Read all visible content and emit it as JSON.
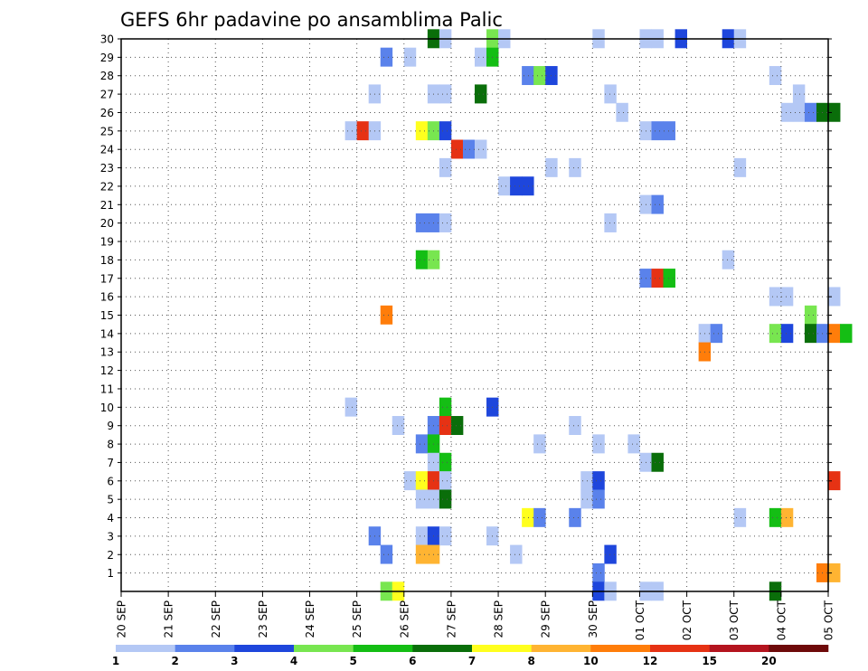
{
  "chart_data": {
    "type": "heatmap",
    "title": "GEFS 6hr padavine po ansamblima Palic",
    "x_tick_labels": [
      "20 SEP",
      "21 SEP",
      "22 SEP",
      "23 SEP",
      "24 SEP",
      "25 SEP",
      "26 SEP",
      "27 SEP",
      "28 SEP",
      "29 SEP",
      "30 SEP",
      "01 OCT",
      "02 OCT",
      "03 OCT",
      "04 OCT",
      "05 OCT"
    ],
    "y_tick_labels": [
      "1",
      "2",
      "3",
      "4",
      "5",
      "6",
      "7",
      "8",
      "9",
      "10",
      "11",
      "12",
      "13",
      "14",
      "15",
      "16",
      "17",
      "18",
      "19",
      "20",
      "21",
      "22",
      "23",
      "24",
      "25",
      "26",
      "27",
      "28",
      "29",
      "30"
    ],
    "y_range": [
      0,
      30
    ],
    "grid": true,
    "legend": {
      "placement": "bottom",
      "labels": [
        "1",
        "2",
        "3",
        "4",
        "5",
        "6",
        "7",
        "8",
        "10",
        "12",
        "15",
        "20"
      ],
      "colors": [
        "#b4c8f5",
        "#5a82eb",
        "#1e46dc",
        "#78e650",
        "#14be14",
        "#0a6e0a",
        "#ffff1e",
        "#ffb432",
        "#ff7d0a",
        "#e63214",
        "#b4141e",
        "#6e0a0a"
      ]
    },
    "cells": [
      {
        "member": 30,
        "date": "26 SEP 12",
        "level": 5
      },
      {
        "member": 30,
        "date": "26 SEP 18",
        "level": 0
      },
      {
        "member": 30,
        "date": "27 SEP 18",
        "level": 3
      },
      {
        "member": 30,
        "date": "28 SEP 00",
        "level": 0
      },
      {
        "member": 30,
        "date": "30 SEP 00",
        "level": 0
      },
      {
        "member": 30,
        "date": "01 OCT 00",
        "level": 0
      },
      {
        "member": 30,
        "date": "01 OCT 06",
        "level": 0
      },
      {
        "member": 30,
        "date": "01 OCT 18",
        "level": 2
      },
      {
        "member": 30,
        "date": "02 OCT 18",
        "level": 2
      },
      {
        "member": 30,
        "date": "03 OCT 00",
        "level": 0
      },
      {
        "member": 29,
        "date": "25 SEP 12",
        "level": 1
      },
      {
        "member": 29,
        "date": "26 SEP 00",
        "level": 0
      },
      {
        "member": 29,
        "date": "27 SEP 12",
        "level": 0
      },
      {
        "member": 29,
        "date": "27 SEP 18",
        "level": 4
      },
      {
        "member": 28,
        "date": "28 SEP 12",
        "level": 1
      },
      {
        "member": 28,
        "date": "28 SEP 18",
        "level": 3
      },
      {
        "member": 28,
        "date": "29 SEP 00",
        "level": 2
      },
      {
        "member": 28,
        "date": "03 OCT 18",
        "level": 0
      },
      {
        "member": 27,
        "date": "25 SEP 06",
        "level": 0
      },
      {
        "member": 27,
        "date": "26 SEP 12",
        "level": 0
      },
      {
        "member": 27,
        "date": "26 SEP 18",
        "level": 0
      },
      {
        "member": 27,
        "date": "27 SEP 12",
        "level": 5
      },
      {
        "member": 27,
        "date": "30 SEP 06",
        "level": 0
      },
      {
        "member": 27,
        "date": "04 OCT 06",
        "level": 0
      },
      {
        "member": 26,
        "date": "30 SEP 12",
        "level": 0
      },
      {
        "member": 26,
        "date": "04 OCT 00",
        "level": 0
      },
      {
        "member": 26,
        "date": "04 OCT 06",
        "level": 0
      },
      {
        "member": 26,
        "date": "04 OCT 12",
        "level": 1
      },
      {
        "member": 26,
        "date": "04 OCT 18",
        "level": 5
      },
      {
        "member": 26,
        "date": "05 OCT 00",
        "level": 5
      },
      {
        "member": 25,
        "date": "24 SEP 18",
        "level": 0
      },
      {
        "member": 25,
        "date": "25 SEP 00",
        "level": 9
      },
      {
        "member": 25,
        "date": "25 SEP 06",
        "level": 0
      },
      {
        "member": 25,
        "date": "26 SEP 06",
        "level": 6
      },
      {
        "member": 25,
        "date": "26 SEP 12",
        "level": 3
      },
      {
        "member": 25,
        "date": "26 SEP 18",
        "level": 2
      },
      {
        "member": 25,
        "date": "01 OCT 00",
        "level": 0
      },
      {
        "member": 25,
        "date": "01 OCT 06",
        "level": 1
      },
      {
        "member": 25,
        "date": "01 OCT 12",
        "level": 1
      },
      {
        "member": 24,
        "date": "27 SEP 00",
        "level": 9
      },
      {
        "member": 24,
        "date": "27 SEP 06",
        "level": 1
      },
      {
        "member": 24,
        "date": "27 SEP 12",
        "level": 0
      },
      {
        "member": 23,
        "date": "26 SEP 18",
        "level": 0
      },
      {
        "member": 23,
        "date": "29 SEP 00",
        "level": 0
      },
      {
        "member": 23,
        "date": "29 SEP 12",
        "level": 0
      },
      {
        "member": 23,
        "date": "03 OCT 00",
        "level": 0
      },
      {
        "member": 22,
        "date": "28 SEP 00",
        "level": 0
      },
      {
        "member": 22,
        "date": "28 SEP 06",
        "level": 2
      },
      {
        "member": 22,
        "date": "28 SEP 12",
        "level": 2
      },
      {
        "member": 21,
        "date": "01 OCT 00",
        "level": 0
      },
      {
        "member": 21,
        "date": "01 OCT 06",
        "level": 1
      },
      {
        "member": 20,
        "date": "26 SEP 06",
        "level": 1
      },
      {
        "member": 20,
        "date": "26 SEP 12",
        "level": 1
      },
      {
        "member": 20,
        "date": "26 SEP 18",
        "level": 0
      },
      {
        "member": 20,
        "date": "30 SEP 06",
        "level": 0
      },
      {
        "member": 18,
        "date": "26 SEP 06",
        "level": 4
      },
      {
        "member": 18,
        "date": "26 SEP 12",
        "level": 3
      },
      {
        "member": 18,
        "date": "02 OCT 18",
        "level": 0
      },
      {
        "member": 17,
        "date": "01 OCT 00",
        "level": 1
      },
      {
        "member": 17,
        "date": "01 OCT 06",
        "level": 9
      },
      {
        "member": 17,
        "date": "01 OCT 12",
        "level": 4
      },
      {
        "member": 16,
        "date": "03 OCT 18",
        "level": 0
      },
      {
        "member": 16,
        "date": "04 OCT 00",
        "level": 0
      },
      {
        "member": 16,
        "date": "05 OCT 00",
        "level": 0
      },
      {
        "member": 15,
        "date": "25 SEP 12",
        "level": 8
      },
      {
        "member": 15,
        "date": "04 OCT 12",
        "level": 3
      },
      {
        "member": 14,
        "date": "02 OCT 06",
        "level": 0
      },
      {
        "member": 14,
        "date": "02 OCT 12",
        "level": 1
      },
      {
        "member": 14,
        "date": "03 OCT 18",
        "level": 3
      },
      {
        "member": 14,
        "date": "04 OCT 00",
        "level": 2
      },
      {
        "member": 14,
        "date": "04 OCT 12",
        "level": 5
      },
      {
        "member": 14,
        "date": "04 OCT 18",
        "level": 1
      },
      {
        "member": 14,
        "date": "05 OCT 00",
        "level": 8
      },
      {
        "member": 14,
        "date": "05 OCT 06",
        "level": 4
      },
      {
        "member": 13,
        "date": "02 OCT 06",
        "level": 8
      },
      {
        "member": 10,
        "date": "24 SEP 18",
        "level": 0
      },
      {
        "member": 10,
        "date": "26 SEP 18",
        "level": 4
      },
      {
        "member": 10,
        "date": "27 SEP 18",
        "level": 2
      },
      {
        "member": 9,
        "date": "25 SEP 18",
        "level": 0
      },
      {
        "member": 9,
        "date": "26 SEP 12",
        "level": 1
      },
      {
        "member": 9,
        "date": "26 SEP 18",
        "level": 9
      },
      {
        "member": 9,
        "date": "27 SEP 00",
        "level": 5
      },
      {
        "member": 9,
        "date": "29 SEP 12",
        "level": 0
      },
      {
        "member": 8,
        "date": "26 SEP 06",
        "level": 1
      },
      {
        "member": 8,
        "date": "26 SEP 12",
        "level": 4
      },
      {
        "member": 8,
        "date": "28 SEP 18",
        "level": 0
      },
      {
        "member": 8,
        "date": "30 SEP 00",
        "level": 0
      },
      {
        "member": 8,
        "date": "30 SEP 18",
        "level": 0
      },
      {
        "member": 7,
        "date": "26 SEP 12",
        "level": 0
      },
      {
        "member": 7,
        "date": "26 SEP 18",
        "level": 4
      },
      {
        "member": 7,
        "date": "01 OCT 00",
        "level": 0
      },
      {
        "member": 7,
        "date": "01 OCT 06",
        "level": 5
      },
      {
        "member": 6,
        "date": "26 SEP 00",
        "level": 0
      },
      {
        "member": 6,
        "date": "26 SEP 06",
        "level": 6
      },
      {
        "member": 6,
        "date": "26 SEP 12",
        "level": 9
      },
      {
        "member": 6,
        "date": "26 SEP 18",
        "level": 0
      },
      {
        "member": 6,
        "date": "29 SEP 18",
        "level": 0
      },
      {
        "member": 6,
        "date": "30 SEP 00",
        "level": 2
      },
      {
        "member": 6,
        "date": "05 OCT 00",
        "level": 9
      },
      {
        "member": 5,
        "date": "26 SEP 06",
        "level": 0
      },
      {
        "member": 5,
        "date": "26 SEP 12",
        "level": 0
      },
      {
        "member": 5,
        "date": "26 SEP 18",
        "level": 5
      },
      {
        "member": 5,
        "date": "29 SEP 18",
        "level": 0
      },
      {
        "member": 5,
        "date": "30 SEP 00",
        "level": 1
      },
      {
        "member": 4,
        "date": "28 SEP 12",
        "level": 6
      },
      {
        "member": 4,
        "date": "28 SEP 18",
        "level": 1
      },
      {
        "member": 4,
        "date": "29 SEP 12",
        "level": 1
      },
      {
        "member": 4,
        "date": "03 OCT 00",
        "level": 0
      },
      {
        "member": 4,
        "date": "03 OCT 18",
        "level": 4
      },
      {
        "member": 4,
        "date": "04 OCT 00",
        "level": 7
      },
      {
        "member": 3,
        "date": "25 SEP 06",
        "level": 1
      },
      {
        "member": 3,
        "date": "26 SEP 06",
        "level": 0
      },
      {
        "member": 3,
        "date": "26 SEP 12",
        "level": 2
      },
      {
        "member": 3,
        "date": "26 SEP 18",
        "level": 0
      },
      {
        "member": 3,
        "date": "27 SEP 18",
        "level": 0
      },
      {
        "member": 2,
        "date": "25 SEP 12",
        "level": 1
      },
      {
        "member": 2,
        "date": "26 SEP 06",
        "level": 7
      },
      {
        "member": 2,
        "date": "26 SEP 12",
        "level": 7
      },
      {
        "member": 2,
        "date": "28 SEP 06",
        "level": 0
      },
      {
        "member": 2,
        "date": "30 SEP 06",
        "level": 2
      },
      {
        "member": 1,
        "date": "30 SEP 00",
        "level": 1
      },
      {
        "member": 1,
        "date": "04 OCT 18",
        "level": 8
      },
      {
        "member": 1,
        "date": "05 OCT 00",
        "level": 7
      },
      {
        "member": 0,
        "date": "25 SEP 12",
        "level": 3
      },
      {
        "member": 0,
        "date": "25 SEP 18",
        "level": 6
      },
      {
        "member": 0,
        "date": "30 SEP 00",
        "level": 2
      },
      {
        "member": 0,
        "date": "30 SEP 06",
        "level": 0
      },
      {
        "member": 0,
        "date": "01 OCT 00",
        "level": 0
      },
      {
        "member": 0,
        "date": "01 OCT 06",
        "level": 0
      },
      {
        "member": 0,
        "date": "03 OCT 18",
        "level": 5
      }
    ]
  }
}
